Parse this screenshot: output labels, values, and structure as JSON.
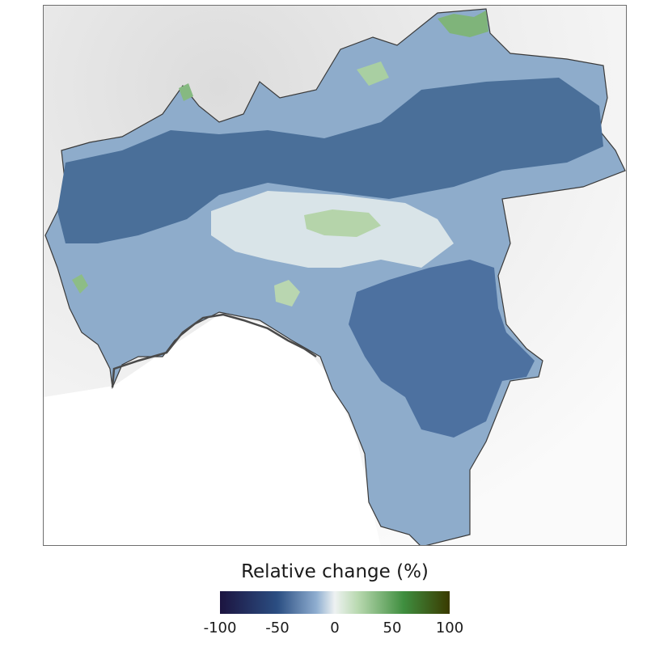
{
  "legend": {
    "title": "Relative change (%)",
    "ticks": [
      "-100",
      "-50",
      "0",
      "50",
      "100"
    ],
    "scale_min": -100,
    "scale_max": 100,
    "colors": [
      "#1c1440",
      "#2b4e82",
      "#6f91b8",
      "#eef2f2",
      "#9cc79a",
      "#2e7a2e",
      "#3a3a00"
    ]
  },
  "map": {
    "background_relief": "#e9e9e9",
    "sea": "#ffffff",
    "outline": "#3a3a3a",
    "fill_strong_decrease": "#3e6592",
    "fill_moderate_decrease": "#8aaac8",
    "fill_near_zero": "#dde7ea",
    "fill_increase": "#a8cfa0"
  }
}
